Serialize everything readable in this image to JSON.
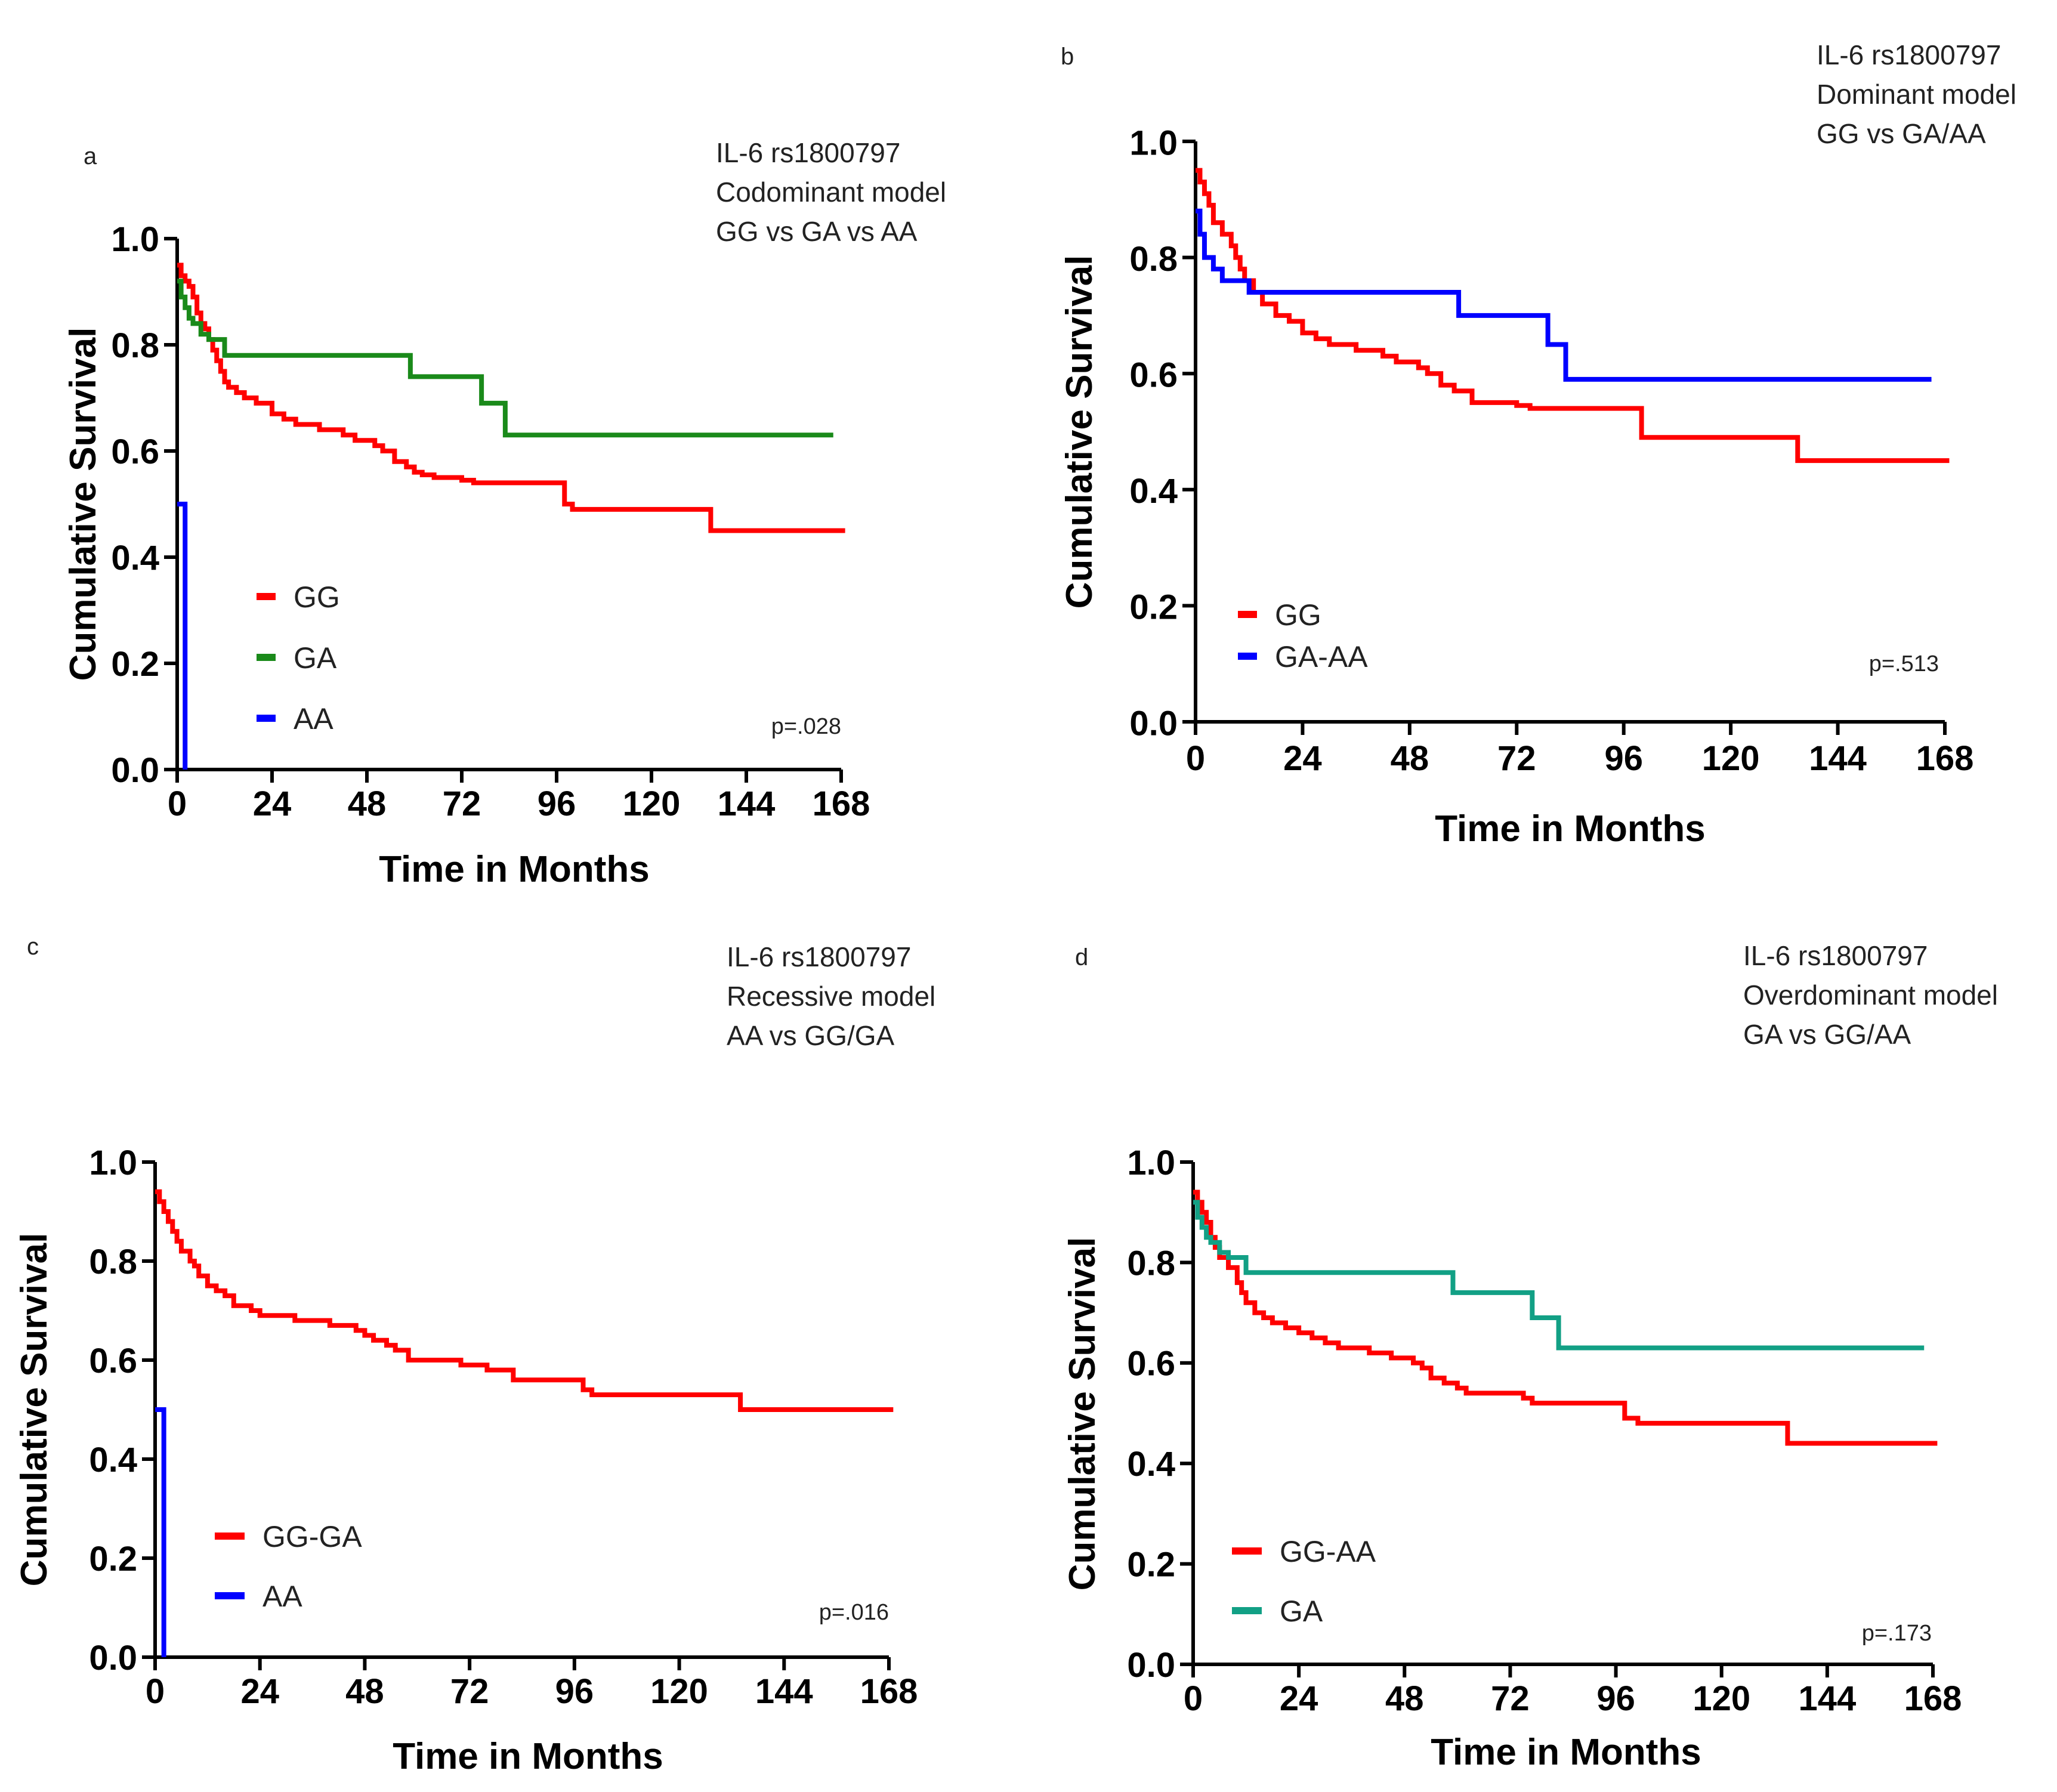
{
  "chart_data": [
    {
      "type": "line",
      "panel": "a",
      "annotation": [
        "IL-6 rs1800797",
        "Codominant model",
        "GG vs GA vs AA"
      ],
      "xlabel": "Time in Months",
      "ylabel": "Cumulative Survival",
      "xticks": [
        "0",
        "24",
        "48",
        "72",
        "96",
        "120",
        "144",
        "168"
      ],
      "yticks": [
        "0.0",
        "0.2",
        "0.4",
        "0.6",
        "0.8",
        "1.0"
      ],
      "xlim": [
        0,
        168
      ],
      "ylim": [
        0,
        1
      ],
      "pvalue": "p=.028",
      "series": [
        {
          "name": "GG",
          "color": "#ff0000",
          "steps": [
            [
              0,
              0.95
            ],
            [
              1,
              0.93
            ],
            [
              2,
              0.92
            ],
            [
              3,
              0.91
            ],
            [
              4,
              0.89
            ],
            [
              5,
              0.86
            ],
            [
              6,
              0.84
            ],
            [
              7,
              0.83
            ],
            [
              8,
              0.81
            ],
            [
              9,
              0.79
            ],
            [
              10,
              0.77
            ],
            [
              11,
              0.75
            ],
            [
              12,
              0.73
            ],
            [
              13,
              0.72
            ],
            [
              15,
              0.71
            ],
            [
              17,
              0.7
            ],
            [
              20,
              0.69
            ],
            [
              24,
              0.67
            ],
            [
              27,
              0.66
            ],
            [
              30,
              0.65
            ],
            [
              36,
              0.64
            ],
            [
              42,
              0.63
            ],
            [
              45,
              0.62
            ],
            [
              50,
              0.61
            ],
            [
              52,
              0.6
            ],
            [
              55,
              0.58
            ],
            [
              58,
              0.57
            ],
            [
              60,
              0.56
            ],
            [
              62,
              0.555
            ],
            [
              65,
              0.55
            ],
            [
              72,
              0.545
            ],
            [
              75,
              0.54
            ],
            [
              98,
              0.5
            ],
            [
              100,
              0.49
            ],
            [
              135,
              0.45
            ],
            [
              169,
              0.45
            ]
          ]
        },
        {
          "name": "GA",
          "color": "#1a8a1a",
          "steps": [
            [
              0,
              0.92
            ],
            [
              1,
              0.89
            ],
            [
              2,
              0.87
            ],
            [
              3,
              0.85
            ],
            [
              4,
              0.84
            ],
            [
              6,
              0.82
            ],
            [
              8,
              0.81
            ],
            [
              12,
              0.78
            ],
            [
              59,
              0.74
            ],
            [
              77,
              0.69
            ],
            [
              83,
              0.63
            ],
            [
              166,
              0.63
            ]
          ]
        },
        {
          "name": "AA",
          "color": "#0000ff",
          "steps": [
            [
              0,
              0.5
            ],
            [
              2,
              0.0
            ]
          ]
        }
      ]
    },
    {
      "type": "line",
      "panel": "b",
      "annotation": [
        "IL-6 rs1800797",
        "Dominant model",
        "GG vs GA/AA"
      ],
      "xlabel": "Time in Months",
      "ylabel": "Cumulative Survival",
      "xticks": [
        "0",
        "24",
        "48",
        "72",
        "96",
        "120",
        "144",
        "168"
      ],
      "yticks": [
        "0.0",
        "0.2",
        "0.4",
        "0.6",
        "0.8",
        "1.0"
      ],
      "xlim": [
        0,
        168
      ],
      "ylim": [
        0,
        1
      ],
      "pvalue": "p=.513",
      "series": [
        {
          "name": "GG",
          "color": "#ff0000",
          "steps": [
            [
              0,
              0.95
            ],
            [
              1,
              0.93
            ],
            [
              2,
              0.91
            ],
            [
              3,
              0.89
            ],
            [
              4,
              0.86
            ],
            [
              6,
              0.84
            ],
            [
              8,
              0.82
            ],
            [
              9,
              0.8
            ],
            [
              10,
              0.78
            ],
            [
              11,
              0.76
            ],
            [
              13,
              0.74
            ],
            [
              15,
              0.72
            ],
            [
              18,
              0.7
            ],
            [
              21,
              0.69
            ],
            [
              24,
              0.67
            ],
            [
              27,
              0.66
            ],
            [
              30,
              0.65
            ],
            [
              36,
              0.64
            ],
            [
              42,
              0.63
            ],
            [
              45,
              0.62
            ],
            [
              50,
              0.61
            ],
            [
              52,
              0.6
            ],
            [
              55,
              0.58
            ],
            [
              58,
              0.57
            ],
            [
              62,
              0.55
            ],
            [
              72,
              0.545
            ],
            [
              75,
              0.54
            ],
            [
              100,
              0.49
            ],
            [
              135,
              0.45
            ],
            [
              169,
              0.45
            ]
          ]
        },
        {
          "name": "GA-AA",
          "color": "#0000ff",
          "steps": [
            [
              0,
              0.88
            ],
            [
              1,
              0.84
            ],
            [
              2,
              0.8
            ],
            [
              4,
              0.78
            ],
            [
              6,
              0.76
            ],
            [
              12,
              0.74
            ],
            [
              59,
              0.7
            ],
            [
              79,
              0.65
            ],
            [
              83,
              0.59
            ],
            [
              165,
              0.59
            ]
          ]
        }
      ]
    },
    {
      "type": "line",
      "panel": "c",
      "annotation": [
        "IL-6 rs1800797",
        "Recessive model",
        "AA vs GG/GA"
      ],
      "xlabel": "Time in Months",
      "ylabel": "Cumulative Survival",
      "xticks": [
        "0",
        "24",
        "48",
        "72",
        "96",
        "120",
        "144",
        "168"
      ],
      "yticks": [
        "0.0",
        "0.2",
        "0.4",
        "0.6",
        "0.8",
        "1.0"
      ],
      "xlim": [
        0,
        168
      ],
      "ylim": [
        0,
        1
      ],
      "pvalue": "p=.016",
      "series": [
        {
          "name": "GG-GA",
          "color": "#ff0000",
          "steps": [
            [
              0,
              0.94
            ],
            [
              1,
              0.92
            ],
            [
              2,
              0.9
            ],
            [
              3,
              0.88
            ],
            [
              4,
              0.86
            ],
            [
              5,
              0.84
            ],
            [
              6,
              0.82
            ],
            [
              8,
              0.8
            ],
            [
              9,
              0.79
            ],
            [
              10,
              0.77
            ],
            [
              12,
              0.75
            ],
            [
              14,
              0.74
            ],
            [
              16,
              0.73
            ],
            [
              18,
              0.71
            ],
            [
              22,
              0.7
            ],
            [
              24,
              0.69
            ],
            [
              32,
              0.68
            ],
            [
              40,
              0.67
            ],
            [
              46,
              0.66
            ],
            [
              48,
              0.65
            ],
            [
              50,
              0.64
            ],
            [
              53,
              0.63
            ],
            [
              55,
              0.62
            ],
            [
              58,
              0.6
            ],
            [
              70,
              0.59
            ],
            [
              76,
              0.58
            ],
            [
              82,
              0.56
            ],
            [
              98,
              0.54
            ],
            [
              100,
              0.53
            ],
            [
              134,
              0.5
            ],
            [
              169,
              0.5
            ]
          ]
        },
        {
          "name": "AA",
          "color": "#0000ff",
          "steps": [
            [
              0,
              0.5
            ],
            [
              2,
              0.0
            ]
          ]
        }
      ]
    },
    {
      "type": "line",
      "panel": "d",
      "annotation": [
        "IL-6 rs1800797",
        "Overdominant model",
        "GA vs GG/AA"
      ],
      "xlabel": "Time in Months",
      "ylabel": "Cumulative Survival",
      "xticks": [
        "0",
        "24",
        "48",
        "72",
        "96",
        "120",
        "144",
        "168"
      ],
      "yticks": [
        "0.0",
        "0.2",
        "0.4",
        "0.6",
        "0.8",
        "1.0"
      ],
      "xlim": [
        0,
        168
      ],
      "ylim": [
        0,
        1
      ],
      "pvalue": "p=.173",
      "series": [
        {
          "name": "GG-AA",
          "color": "#ff0000",
          "steps": [
            [
              0,
              0.94
            ],
            [
              1,
              0.92
            ],
            [
              2,
              0.9
            ],
            [
              3,
              0.88
            ],
            [
              4,
              0.85
            ],
            [
              5,
              0.83
            ],
            [
              6,
              0.81
            ],
            [
              8,
              0.79
            ],
            [
              10,
              0.76
            ],
            [
              11,
              0.74
            ],
            [
              12,
              0.72
            ],
            [
              14,
              0.7
            ],
            [
              16,
              0.69
            ],
            [
              18,
              0.68
            ],
            [
              21,
              0.67
            ],
            [
              24,
              0.66
            ],
            [
              27,
              0.65
            ],
            [
              30,
              0.64
            ],
            [
              33,
              0.63
            ],
            [
              40,
              0.62
            ],
            [
              45,
              0.61
            ],
            [
              50,
              0.6
            ],
            [
              52,
              0.59
            ],
            [
              54,
              0.57
            ],
            [
              57,
              0.56
            ],
            [
              60,
              0.55
            ],
            [
              62,
              0.54
            ],
            [
              75,
              0.53
            ],
            [
              77,
              0.52
            ],
            [
              98,
              0.49
            ],
            [
              101,
              0.48
            ],
            [
              135,
              0.44
            ],
            [
              169,
              0.44
            ]
          ]
        },
        {
          "name": "GA",
          "color": "#12a085",
          "steps": [
            [
              0,
              0.92
            ],
            [
              1,
              0.89
            ],
            [
              2,
              0.87
            ],
            [
              3,
              0.85
            ],
            [
              4,
              0.84
            ],
            [
              6,
              0.82
            ],
            [
              8,
              0.81
            ],
            [
              12,
              0.78
            ],
            [
              59,
              0.74
            ],
            [
              77,
              0.69
            ],
            [
              83,
              0.63
            ],
            [
              166,
              0.63
            ]
          ]
        }
      ]
    }
  ]
}
